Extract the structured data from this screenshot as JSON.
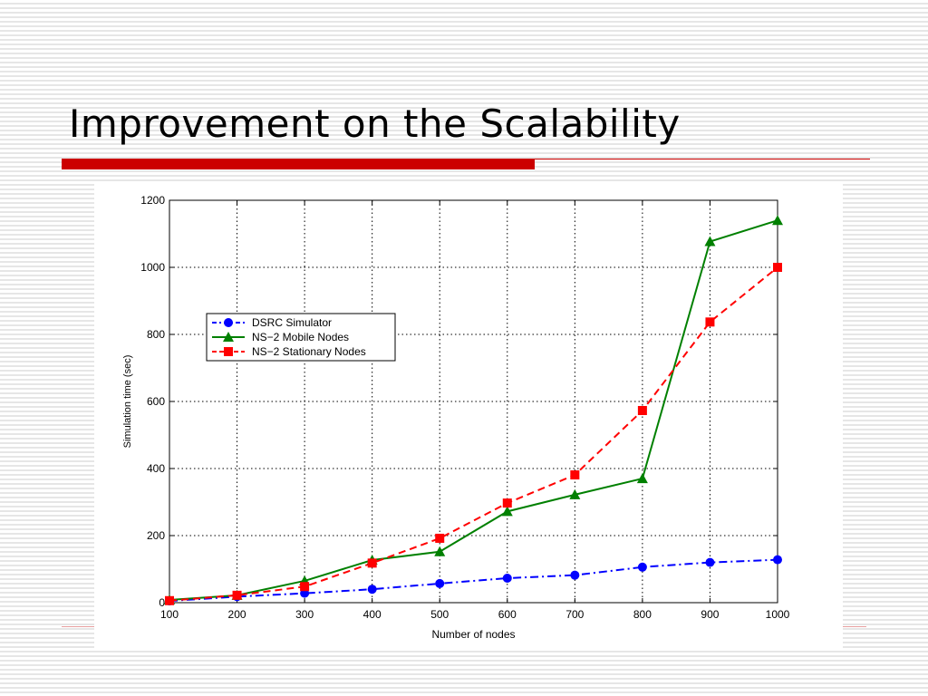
{
  "slide": {
    "title": "Improvement on the Scalability",
    "accent_color": "#cc0000"
  },
  "chart_data": {
    "type": "line",
    "title": "",
    "xlabel": "Number of nodes",
    "ylabel": "Simulation time (sec)",
    "xlim": [
      100,
      1000
    ],
    "ylim": [
      0,
      1200
    ],
    "xticks": [
      100,
      200,
      300,
      400,
      500,
      600,
      700,
      800,
      900,
      1000
    ],
    "yticks": [
      0,
      200,
      400,
      600,
      800,
      1000,
      1200
    ],
    "x": [
      100,
      200,
      300,
      400,
      500,
      600,
      700,
      800,
      900,
      1000
    ],
    "grid": true,
    "legend_position": "upper-left",
    "series": [
      {
        "name": "DSRC Simulator",
        "color": "#0000ff",
        "marker": "circle",
        "line_style": "dash-dot",
        "values": [
          5,
          18,
          28,
          40,
          57,
          73,
          82,
          106,
          120,
          128
        ]
      },
      {
        "name": "NS−2 Mobile Nodes",
        "color": "#008000",
        "marker": "triangle",
        "line_style": "solid",
        "values": [
          8,
          22,
          65,
          127,
          152,
          272,
          322,
          370,
          1077,
          1140
        ]
      },
      {
        "name": "NS−2 Stationary Nodes",
        "color": "#ff0000",
        "marker": "square",
        "line_style": "dashed",
        "values": [
          6,
          22,
          48,
          118,
          192,
          297,
          381,
          573,
          837,
          1000
        ]
      }
    ]
  }
}
